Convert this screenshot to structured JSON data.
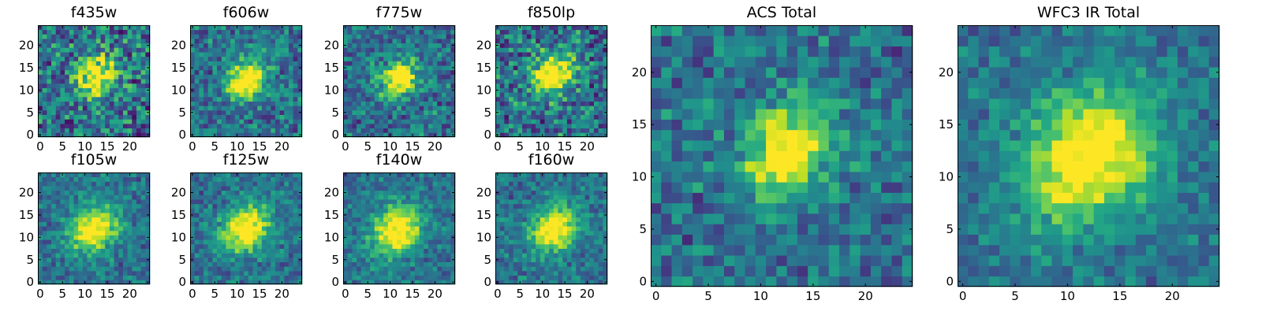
{
  "chart_data": [
    {
      "type": "heatmap",
      "title": "f435w",
      "xticks": [
        0,
        5,
        10,
        15,
        20
      ],
      "yticks": [
        0,
        5,
        10,
        15,
        20
      ],
      "xlim": [
        -0.5,
        24.5
      ],
      "ylim": [
        -0.5,
        24.5
      ],
      "grid_size": [
        25,
        25
      ],
      "peak": [
        12.5,
        13.0
      ],
      "spread": 2.8,
      "noise": 0.45,
      "colormap": "viridis"
    },
    {
      "type": "heatmap",
      "title": "f606w",
      "xticks": [
        0,
        5,
        10,
        15,
        20
      ],
      "yticks": [
        0,
        5,
        10,
        15,
        20
      ],
      "xlim": [
        -0.5,
        24.5
      ],
      "ylim": [
        -0.5,
        24.5
      ],
      "grid_size": [
        25,
        25
      ],
      "peak": [
        12.0,
        12.5
      ],
      "spread": 2.6,
      "noise": 0.3,
      "colormap": "viridis"
    },
    {
      "type": "heatmap",
      "title": "f775w",
      "xticks": [
        0,
        5,
        10,
        15,
        20
      ],
      "yticks": [
        0,
        5,
        10,
        15,
        20
      ],
      "xlim": [
        -0.5,
        24.5
      ],
      "ylim": [
        -0.5,
        24.5
      ],
      "grid_size": [
        25,
        25
      ],
      "peak": [
        12.0,
        12.5
      ],
      "spread": 2.4,
      "noise": 0.32,
      "colormap": "viridis"
    },
    {
      "type": "heatmap",
      "title": "f850lp",
      "xticks": [
        0,
        5,
        10,
        15,
        20
      ],
      "yticks": [
        0,
        5,
        10,
        15,
        20
      ],
      "xlim": [
        -0.5,
        24.5
      ],
      "ylim": [
        -0.5,
        24.5
      ],
      "grid_size": [
        25,
        25
      ],
      "peak": [
        12.5,
        13.5
      ],
      "spread": 3.0,
      "noise": 0.42,
      "colormap": "viridis"
    },
    {
      "type": "heatmap",
      "title": "ACS Total",
      "xticks": [
        0,
        5,
        10,
        15,
        20
      ],
      "yticks": [
        0,
        5,
        10,
        15,
        20
      ],
      "xlim": [
        -0.5,
        24.5
      ],
      "ylim": [
        -0.5,
        24.5
      ],
      "grid_size": [
        25,
        25
      ],
      "peak": [
        12.5,
        12.5
      ],
      "spread": 2.6,
      "noise": 0.28,
      "colormap": "viridis"
    },
    {
      "type": "heatmap",
      "title": "f105w",
      "xticks": [
        0,
        5,
        10,
        15,
        20
      ],
      "yticks": [
        0,
        5,
        10,
        15,
        20
      ],
      "xlim": [
        -0.5,
        24.5
      ],
      "ylim": [
        -0.5,
        24.5
      ],
      "grid_size": [
        25,
        25
      ],
      "peak": [
        12.0,
        12.0
      ],
      "spread": 3.2,
      "noise": 0.22,
      "colormap": "viridis"
    },
    {
      "type": "heatmap",
      "title": "f125w",
      "xticks": [
        0,
        5,
        10,
        15,
        20
      ],
      "yticks": [
        0,
        5,
        10,
        15,
        20
      ],
      "xlim": [
        -0.5,
        24.5
      ],
      "ylim": [
        -0.5,
        24.5
      ],
      "grid_size": [
        25,
        25
      ],
      "peak": [
        12.0,
        12.0
      ],
      "spread": 3.2,
      "noise": 0.22,
      "colormap": "viridis"
    },
    {
      "type": "heatmap",
      "title": "f140w",
      "xticks": [
        0,
        5,
        10,
        15,
        20
      ],
      "yticks": [
        0,
        5,
        10,
        15,
        20
      ],
      "xlim": [
        -0.5,
        24.5
      ],
      "ylim": [
        -0.5,
        24.5
      ],
      "grid_size": [
        25,
        25
      ],
      "peak": [
        11.5,
        11.5
      ],
      "spread": 3.4,
      "noise": 0.2,
      "colormap": "viridis"
    },
    {
      "type": "heatmap",
      "title": "f160w",
      "xticks": [
        0,
        5,
        10,
        15,
        20
      ],
      "yticks": [
        0,
        5,
        10,
        15,
        20
      ],
      "xlim": [
        -0.5,
        24.5
      ],
      "ylim": [
        -0.5,
        24.5
      ],
      "grid_size": [
        25,
        25
      ],
      "peak": [
        12.5,
        12.0
      ],
      "spread": 3.2,
      "noise": 0.22,
      "colormap": "viridis"
    },
    {
      "type": "heatmap",
      "title": "WFC3 IR Total",
      "xticks": [
        0,
        5,
        10,
        15,
        20
      ],
      "yticks": [
        0,
        5,
        10,
        15,
        20
      ],
      "xlim": [
        -0.5,
        24.5
      ],
      "ylim": [
        -0.5,
        24.5
      ],
      "grid_size": [
        25,
        25
      ],
      "peak": [
        12.0,
        12.0
      ],
      "spread": 3.8,
      "noise": 0.18,
      "colormap": "viridis"
    }
  ]
}
